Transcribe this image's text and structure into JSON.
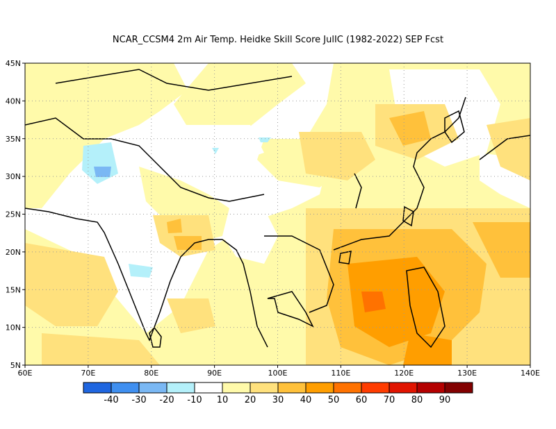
{
  "title": "NCAR_CCSM4  2m Air Temp. Heidke Skill Score JulIC (1982-2022) SEP Fcst",
  "map": {
    "lon_range": [
      60,
      140
    ],
    "lat_range": [
      5,
      45
    ],
    "lat_ticks": [
      {
        "value": 5,
        "label": "5N"
      },
      {
        "value": 10,
        "label": "10N"
      },
      {
        "value": 15,
        "label": "15N"
      },
      {
        "value": 20,
        "label": "20N"
      },
      {
        "value": 25,
        "label": "25N"
      },
      {
        "value": 30,
        "label": "30N"
      },
      {
        "value": 35,
        "label": "35N"
      },
      {
        "value": 40,
        "label": "40N"
      },
      {
        "value": 45,
        "label": "45N"
      }
    ],
    "lon_ticks": [
      {
        "value": 60,
        "label": "60E"
      },
      {
        "value": 70,
        "label": "70E"
      },
      {
        "value": 80,
        "label": "80E"
      },
      {
        "value": 90,
        "label": "90E"
      },
      {
        "value": 100,
        "label": "100E"
      },
      {
        "value": 110,
        "label": "110E"
      },
      {
        "value": 120,
        "label": "120E"
      },
      {
        "value": 130,
        "label": "130E"
      },
      {
        "value": 140,
        "label": "140E"
      }
    ]
  },
  "colorbar": {
    "colors": [
      "#1f66e0",
      "#3f8ff0",
      "#7ab8f4",
      "#b4f0fa",
      "#ffffff",
      "#fffaaa",
      "#ffe17d",
      "#ffc13b",
      "#ff9e00",
      "#ff7200",
      "#ff3c00",
      "#e11400",
      "#b40000",
      "#820000"
    ],
    "labels": [
      "-40",
      "-30",
      "-20",
      "-10",
      "10",
      "20",
      "30",
      "40",
      "50",
      "60",
      "70",
      "80",
      "90"
    ]
  }
}
